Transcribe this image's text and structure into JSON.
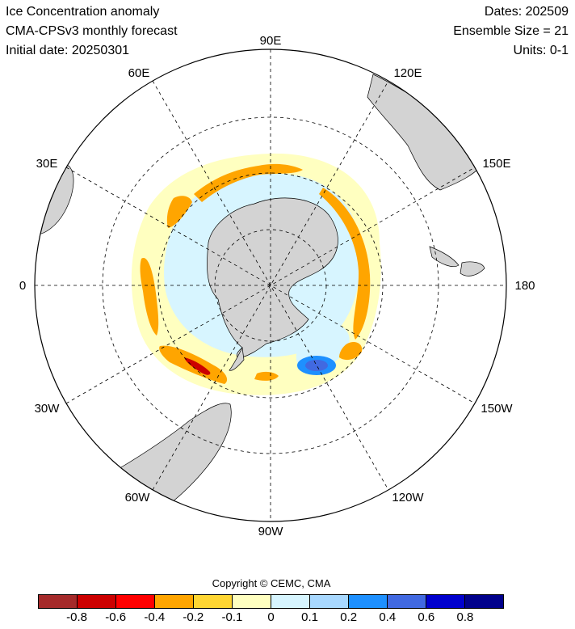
{
  "header": {
    "title": "Ice Concentration anomaly",
    "subtitle": "CMA-CPSv3 monthly forecast",
    "initial_date": "Initial date: 20250301",
    "dates": "Dates: 202509",
    "ensemble": "Ensemble Size = 21",
    "units": "Units: 0-1"
  },
  "map": {
    "projection": "south-polar-stereographic",
    "longitude_labels": {
      "lon_0": "0",
      "lon_30E": "30E",
      "lon_60E": "60E",
      "lon_90E": "90E",
      "lon_120E": "120E",
      "lon_150E": "150E",
      "lon_180": "180",
      "lon_150W": "150W",
      "lon_120W": "120W",
      "lon_90W": "90W",
      "lon_60W": "60W",
      "lon_30W": "30W"
    },
    "land_color": "#d3d3d3",
    "grid_style": "dashed"
  },
  "copyright": "Copyright © CEMC, CMA",
  "colorbar": {
    "colors": [
      "#a52a2a",
      "#cc0000",
      "#ff0000",
      "#ffa500",
      "#ffd633",
      "#ffffc0",
      "#d7f5ff",
      "#a8d8ff",
      "#1e90ff",
      "#4169e1",
      "#0000cd",
      "#00008b"
    ],
    "tick_labels": [
      "-0.8",
      "-0.6",
      "-0.4",
      "-0.2",
      "-0.1",
      "0",
      "0.1",
      "0.2",
      "0.4",
      "0.6",
      "0.8"
    ]
  }
}
